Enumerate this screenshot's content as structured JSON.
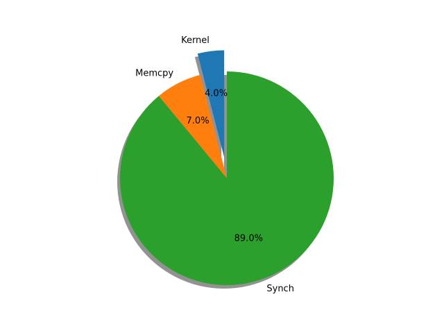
{
  "chart_data": {
    "type": "pie",
    "title": "",
    "labels": [
      "Kernel",
      "Memcpy",
      "Synch"
    ],
    "values": [
      4.0,
      7.0,
      89.0
    ],
    "percent_labels": [
      "4.0%",
      "7.0%",
      "89.0%"
    ],
    "colors": [
      "#1f77b4",
      "#ff7f0e",
      "#2ca02c"
    ],
    "explode": [
      0.2,
      0,
      0
    ],
    "start_angle_deg": 90,
    "direction": "counterclockwise",
    "shadow": true
  }
}
